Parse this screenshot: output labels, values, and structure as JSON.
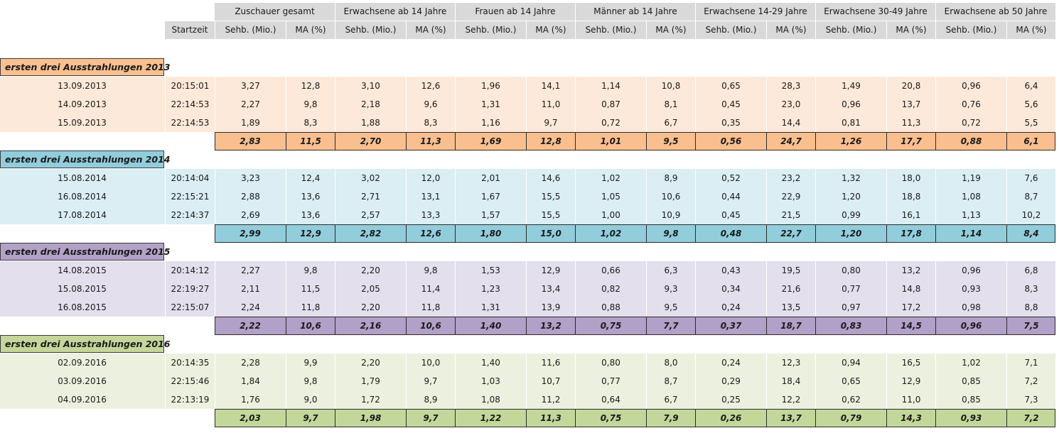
{
  "header": {
    "groups": [
      "Zuschauer gesamt",
      "Erwachsene ab 14 Jahre",
      "Frauen ab 14 Jahre",
      "Männer ab 14 Jahre",
      "Erwachsene 14-29 Jahre",
      "Erwachsene 30-49 Jahre",
      "Erwachsene ab 50 Jahre"
    ],
    "start_label": "Startzeit",
    "sub_a": "Sehb. (Mio.)",
    "sub_b": "MA (%)"
  },
  "colors": {
    "header_bg": "#d9d9d9",
    "s2013": {
      "label": "#fac090",
      "row": "#fde9d9",
      "avg": "#fabf8f"
    },
    "s2014": {
      "label": "#92cddc",
      "row": "#daeef3",
      "avg": "#92cddc"
    },
    "s2015": {
      "label": "#b3a2c7",
      "row": "#e4dfec",
      "avg": "#b1a0c7"
    },
    "s2016": {
      "label": "#c4d79b",
      "row": "#ebf1de",
      "avg": "#c4d79b"
    }
  },
  "sections": [
    {
      "label": "ersten drei Ausstrahlungen 2013",
      "rows": [
        {
          "date": "13.09.2013",
          "time": "20:15:01",
          "values": [
            "3,27",
            "12,8",
            "3,10",
            "12,6",
            "1,96",
            "14,1",
            "1,14",
            "10,8",
            "0,65",
            "28,3",
            "1,49",
            "20,8",
            "0,96",
            "6,4"
          ]
        },
        {
          "date": "14.09.2013",
          "time": "22:14:53",
          "values": [
            "2,27",
            "9,8",
            "2,18",
            "9,6",
            "1,31",
            "11,0",
            "0,87",
            "8,1",
            "0,45",
            "23,0",
            "0,96",
            "13,7",
            "0,76",
            "5,6"
          ]
        },
        {
          "date": "15.09.2013",
          "time": "22:14:53",
          "values": [
            "1,89",
            "8,3",
            "1,88",
            "8,3",
            "1,16",
            "9,7",
            "0,72",
            "6,7",
            "0,35",
            "14,4",
            "0,81",
            "11,3",
            "0,72",
            "5,5"
          ]
        }
      ],
      "avg": [
        "2,83",
        "11,5",
        "2,70",
        "11,3",
        "1,69",
        "12,8",
        "1,01",
        "9,5",
        "0,56",
        "24,7",
        "1,26",
        "17,7",
        "0,88",
        "6,1"
      ]
    },
    {
      "label": "ersten drei Ausstrahlungen 2014",
      "rows": [
        {
          "date": "15.08.2014",
          "time": "20:14:04",
          "values": [
            "3,23",
            "12,4",
            "3,02",
            "12,0",
            "2,01",
            "14,6",
            "1,02",
            "8,9",
            "0,52",
            "23,2",
            "1,32",
            "18,0",
            "1,19",
            "7,6"
          ]
        },
        {
          "date": "16.08.2014",
          "time": "22:15:21",
          "values": [
            "2,88",
            "13,6",
            "2,71",
            "13,1",
            "1,67",
            "15,5",
            "1,05",
            "10,6",
            "0,44",
            "22,9",
            "1,20",
            "18,8",
            "1,08",
            "8,7"
          ]
        },
        {
          "date": "17.08.2014",
          "time": "22:14:37",
          "values": [
            "2,69",
            "13,6",
            "2,57",
            "13,3",
            "1,57",
            "15,5",
            "1,00",
            "10,9",
            "0,45",
            "21,5",
            "0,99",
            "16,1",
            "1,13",
            "10,2"
          ]
        }
      ],
      "avg": [
        "2,99",
        "12,9",
        "2,82",
        "12,6",
        "1,80",
        "15,0",
        "1,02",
        "9,8",
        "0,48",
        "22,7",
        "1,20",
        "17,8",
        "1,14",
        "8,4"
      ]
    },
    {
      "label": "ersten drei Ausstrahlungen 2015",
      "rows": [
        {
          "date": "14.08.2015",
          "time": "20:14:12",
          "values": [
            "2,27",
            "9,8",
            "2,20",
            "9,8",
            "1,53",
            "12,9",
            "0,66",
            "6,3",
            "0,43",
            "19,5",
            "0,80",
            "13,2",
            "0,96",
            "6,8"
          ]
        },
        {
          "date": "15.08.2015",
          "time": "22:19:27",
          "values": [
            "2,11",
            "11,5",
            "2,05",
            "11,4",
            "1,23",
            "13,4",
            "0,82",
            "9,3",
            "0,34",
            "21,6",
            "0,77",
            "14,8",
            "0,93",
            "8,3"
          ]
        },
        {
          "date": "16.08.2015",
          "time": "22:15:07",
          "values": [
            "2,24",
            "11,8",
            "2,20",
            "11,8",
            "1,31",
            "13,9",
            "0,88",
            "9,5",
            "0,24",
            "13,5",
            "0,97",
            "17,2",
            "0,98",
            "8,8"
          ]
        }
      ],
      "avg": [
        "2,22",
        "10,6",
        "2,16",
        "10,6",
        "1,40",
        "13,2",
        "0,75",
        "7,7",
        "0,37",
        "18,7",
        "0,83",
        "14,5",
        "0,96",
        "7,5"
      ]
    },
    {
      "label": "ersten drei Ausstrahlungen 2016",
      "rows": [
        {
          "date": "02.09.2016",
          "time": "20:14:35",
          "values": [
            "2,28",
            "9,9",
            "2,20",
            "10,0",
            "1,40",
            "11,6",
            "0,80",
            "8,0",
            "0,24",
            "12,3",
            "0,94",
            "16,5",
            "1,02",
            "7,1"
          ]
        },
        {
          "date": "03.09.2016",
          "time": "22:15:46",
          "values": [
            "1,84",
            "9,8",
            "1,79",
            "9,7",
            "1,03",
            "10,7",
            "0,77",
            "8,7",
            "0,29",
            "18,4",
            "0,65",
            "12,9",
            "0,85",
            "7,2"
          ]
        },
        {
          "date": "04.09.2016",
          "time": "22:13:19",
          "values": [
            "1,76",
            "9,0",
            "1,72",
            "8,9",
            "1,08",
            "11,2",
            "0,64",
            "6,7",
            "0,25",
            "12,2",
            "0,62",
            "11,0",
            "0,85",
            "7,3"
          ]
        }
      ],
      "avg": [
        "2,03",
        "9,7",
        "1,98",
        "9,7",
        "1,22",
        "11,3",
        "0,75",
        "7,9",
        "0,26",
        "13,7",
        "0,79",
        "14,3",
        "0,93",
        "7,2"
      ]
    }
  ]
}
